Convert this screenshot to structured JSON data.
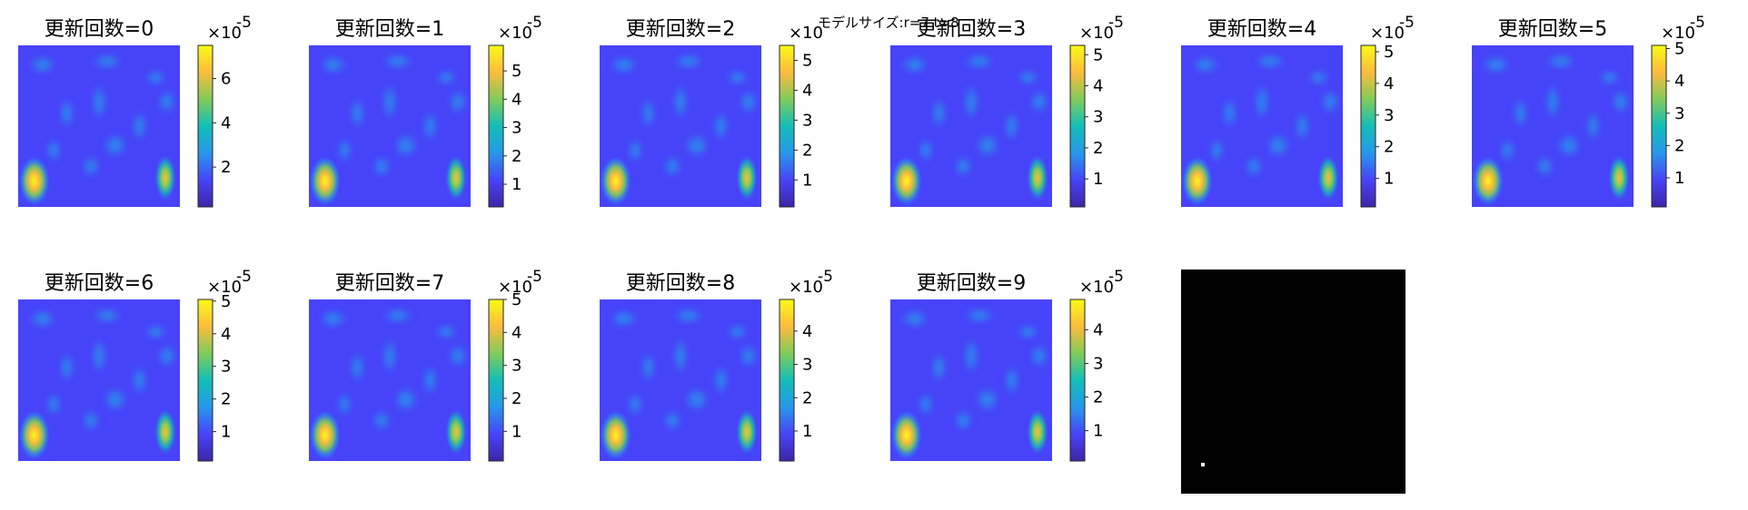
{
  "suptitle": "モデルサイズ:r=7 t=8",
  "colormap_stops": [
    "#3e26a8",
    "#4743f8",
    "#2797eb",
    "#13beb8",
    "#81cc59",
    "#fcbb3d",
    "#f9fb15"
  ],
  "mask_background": "#000000",
  "mask_foreground": "#ffffff",
  "chart_data": [
    {
      "type": "heatmap",
      "title": "更新回数=0",
      "colorbar": {
        "multiplier": "×10",
        "exponent": "-5",
        "ticks": [
          2,
          4,
          6
        ],
        "clim": [
          0.2,
          7.5
        ]
      }
    },
    {
      "type": "heatmap",
      "title": "更新回数=1",
      "colorbar": {
        "multiplier": "×10",
        "exponent": "-5",
        "ticks": [
          1,
          2,
          3,
          4,
          5
        ],
        "clim": [
          0.2,
          5.9
        ]
      }
    },
    {
      "type": "heatmap",
      "title": "更新回数=2",
      "colorbar": {
        "multiplier": "×10",
        "exponent": "",
        "ticks": [
          1,
          2,
          3,
          4,
          5
        ],
        "clim": [
          0.1,
          5.5
        ]
      }
    },
    {
      "type": "heatmap",
      "title": "更新回数=3",
      "colorbar": {
        "multiplier": "×10",
        "exponent": "-5",
        "ticks": [
          1,
          2,
          3,
          4,
          5
        ],
        "clim": [
          0.1,
          5.3
        ]
      }
    },
    {
      "type": "heatmap",
      "title": "更新回数=4",
      "colorbar": {
        "multiplier": "×10",
        "exponent": "-5",
        "ticks": [
          1,
          2,
          3,
          4,
          5
        ],
        "clim": [
          0.1,
          5.2
        ]
      }
    },
    {
      "type": "heatmap",
      "title": "更新回数=5",
      "colorbar": {
        "multiplier": "×10",
        "exponent": "-5",
        "ticks": [
          1,
          2,
          3,
          4,
          5
        ],
        "clim": [
          0.1,
          5.1
        ]
      }
    },
    {
      "type": "heatmap",
      "title": "更新回数=6",
      "colorbar": {
        "multiplier": "×10",
        "exponent": "-5",
        "ticks": [
          1,
          2,
          3,
          4,
          5
        ],
        "clim": [
          0.1,
          5.05
        ]
      }
    },
    {
      "type": "heatmap",
      "title": "更新回数=7",
      "colorbar": {
        "multiplier": "×10",
        "exponent": "-5",
        "ticks": [
          1,
          2,
          3,
          4,
          5
        ],
        "clim": [
          0.1,
          5.0
        ]
      }
    },
    {
      "type": "heatmap",
      "title": "更新回数=8",
      "colorbar": {
        "multiplier": "×10",
        "exponent": "-5",
        "ticks": [
          1,
          2,
          3,
          4
        ],
        "clim": [
          0.1,
          4.95
        ]
      }
    },
    {
      "type": "heatmap",
      "title": "更新回数=9",
      "colorbar": {
        "multiplier": "×10",
        "exponent": "-5",
        "ticks": [
          1,
          2,
          3,
          4
        ],
        "clim": [
          0.1,
          4.9
        ]
      }
    },
    {
      "type": "heatmap",
      "title": "",
      "mask": true
    }
  ]
}
